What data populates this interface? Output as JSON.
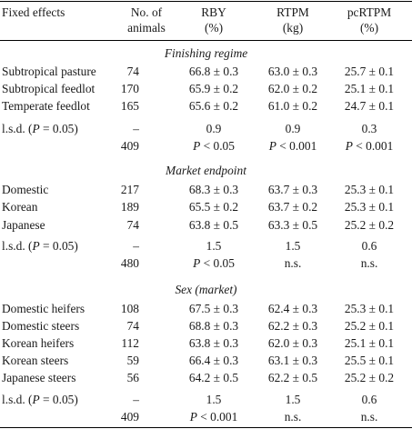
{
  "header": {
    "col0": "Fixed effects",
    "col1": [
      "No. of",
      "animals"
    ],
    "col2": [
      "RBY",
      "(%)"
    ],
    "col3": [
      "RTPM",
      "(kg)"
    ],
    "col4": [
      "pcRTPM",
      "(%)"
    ]
  },
  "sections": [
    {
      "title": "Finishing regime",
      "rows": [
        [
          "Subtropical pasture",
          "74",
          "66.8 ± 0.3",
          "63.0 ± 0.3",
          "25.7 ± 0.1"
        ],
        [
          "Subtropical feedlot",
          "170",
          "65.9 ± 0.2",
          "62.0 ± 0.2",
          "25.1 ± 0.1"
        ],
        [
          "Temperate feedlot",
          "165",
          "65.6 ± 0.2",
          "61.0 ± 0.2",
          "24.7 ± 0.1"
        ]
      ],
      "lsd": {
        "label_pre": "l.s.d. (",
        "label_p": "P",
        "label_post": " = 0.05)",
        "n": "–",
        "v": [
          "0.9",
          "0.9",
          "0.3"
        ]
      },
      "sig": {
        "n": "409",
        "v": [
          [
            "P",
            " < 0.05"
          ],
          [
            "P",
            " < 0.001"
          ],
          [
            "P",
            " < 0.001"
          ]
        ]
      }
    },
    {
      "title": "Market endpoint",
      "rows": [
        [
          "Domestic",
          "217",
          "68.3 ± 0.3",
          "63.7 ± 0.3",
          "25.3 ± 0.1"
        ],
        [
          "Korean",
          "189",
          "65.5 ± 0.2",
          "63.7 ± 0.2",
          "25.3 ± 0.1"
        ],
        [
          "Japanese",
          "74",
          "63.8 ± 0.5",
          "63.3 ± 0.5",
          "25.2 ± 0.2"
        ]
      ],
      "lsd": {
        "label_pre": "l.s.d. (",
        "label_p": "P",
        "label_post": " = 0.05)",
        "n": "–",
        "v": [
          "1.5",
          "1.5",
          "0.6"
        ]
      },
      "sig": {
        "n": "480",
        "v": [
          [
            "P",
            " < 0.05"
          ],
          [
            "",
            "n.s."
          ],
          [
            "",
            "n.s."
          ]
        ]
      }
    },
    {
      "title_pre": "Sex (",
      "title_em": "market",
      "title_post": ")",
      "rows": [
        [
          "Domestic heifers",
          "108",
          "67.5 ± 0.3",
          "62.4 ± 0.3",
          "25.3 ± 0.1"
        ],
        [
          "Domestic steers",
          "74",
          "68.8 ± 0.3",
          "62.2 ± 0.3",
          "25.2 ± 0.1"
        ],
        [
          "Korean heifers",
          "112",
          "63.8 ± 0.3",
          "62.0 ± 0.3",
          "25.1 ± 0.1"
        ],
        [
          "Korean steers",
          "59",
          "66.4 ± 0.3",
          "63.1 ± 0.3",
          "25.5 ± 0.1"
        ],
        [
          "Japanese steers",
          "56",
          "64.2 ± 0.5",
          "62.2 ± 0.5",
          "25.2 ± 0.2"
        ]
      ],
      "lsd": {
        "label_pre": "l.s.d. (",
        "label_p": "P",
        "label_post": " = 0.05)",
        "n": "–",
        "v": [
          "1.5",
          "1.5",
          "0.6"
        ]
      },
      "sig": {
        "n": "409",
        "v": [
          [
            "P",
            " < 0.001"
          ],
          [
            "",
            "n.s."
          ],
          [
            "",
            "n.s."
          ]
        ]
      }
    }
  ]
}
